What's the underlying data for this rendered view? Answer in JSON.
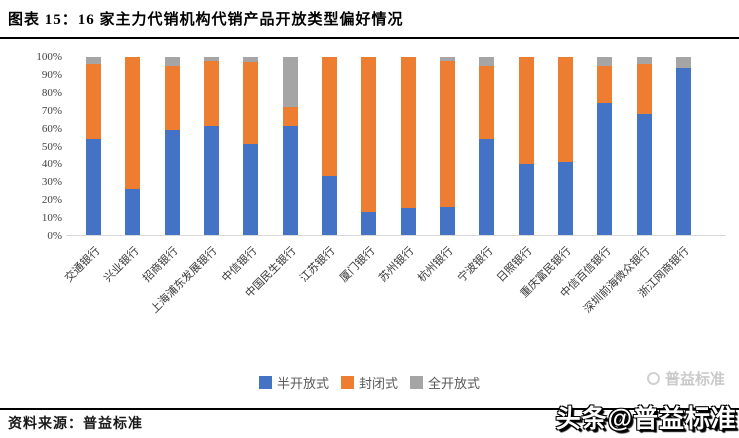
{
  "title": "图表 15：16 家主力代销机构代销产品开放类型偏好情况",
  "source": "资料来源：普益标准",
  "watermark": {
    "faint": "普益标准",
    "bold": "头条@普益标准"
  },
  "colors": {
    "semi_open": "#4472C4",
    "closed": "#ED7D31",
    "full_open": "#A5A5A5",
    "baseline": "#D9D9D9",
    "rule": "#000000"
  },
  "chart_data": {
    "type": "bar",
    "stacked": true,
    "normalized_percent": true,
    "grid": false,
    "legend_position": "bottom",
    "ylim": [
      0,
      100
    ],
    "y_ticks": [
      "0%",
      "10%",
      "20%",
      "30%",
      "40%",
      "50%",
      "60%",
      "70%",
      "80%",
      "90%",
      "100%"
    ],
    "categories": [
      "交通银行",
      "兴业银行",
      "招商银行",
      "上海浦东发展银行",
      "中信银行",
      "中国民生银行",
      "江苏银行",
      "厦门银行",
      "苏州银行",
      "杭州银行",
      "宁波银行",
      "日照银行",
      "重庆富民银行",
      "中信百信银行",
      "深圳前海微众银行",
      "浙江网商银行"
    ],
    "series": [
      {
        "name": "半开放式",
        "key": "semi-open",
        "color": "#4472C4",
        "values": [
          54,
          26,
          59,
          61,
          51,
          61,
          33,
          13,
          15,
          16,
          54,
          40,
          41,
          74,
          68,
          94
        ]
      },
      {
        "name": "封闭式",
        "key": "closed",
        "color": "#ED7D31",
        "values": [
          42,
          74,
          36,
          37,
          46,
          11,
          67,
          87,
          85,
          82,
          41,
          60,
          59,
          21,
          28,
          0
        ]
      },
      {
        "name": "全开放式",
        "key": "full-open",
        "color": "#A5A5A5",
        "values": [
          4,
          0,
          5,
          2,
          3,
          28,
          0,
          0,
          0,
          2,
          5,
          0,
          0,
          5,
          4,
          6
        ]
      }
    ]
  }
}
